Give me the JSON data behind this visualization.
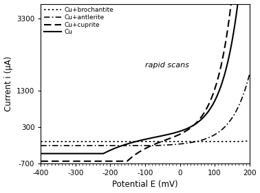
{
  "title": "",
  "annotation": "rapid scans",
  "xlabel": "Potential E (mV)",
  "ylabel": "Current i (μA)",
  "xlim": [
    -400,
    200
  ],
  "ylim": [
    -700,
    3700
  ],
  "yticks": [
    -700,
    300,
    1300,
    3300
  ],
  "ytick_labels": [
    "-700",
    "300",
    "1300",
    "3300"
  ],
  "xticks": [
    -400,
    -300,
    -200,
    -100,
    0,
    100,
    200
  ],
  "background_color": "#ffffff",
  "legend_entries": [
    {
      "label": "Cu+brochantite",
      "linestyle": "dotted",
      "color": "#000000",
      "linewidth": 1.2
    },
    {
      "label": "Cu+antlerite",
      "linestyle": "dashdot",
      "color": "#000000",
      "linewidth": 1.2
    },
    {
      "label": "Cu+cuprite",
      "linestyle": "dashed",
      "color": "#000000",
      "linewidth": 1.5
    },
    {
      "label": "Cu",
      "linestyle": "solid",
      "color": "#000000",
      "linewidth": 1.5
    }
  ]
}
